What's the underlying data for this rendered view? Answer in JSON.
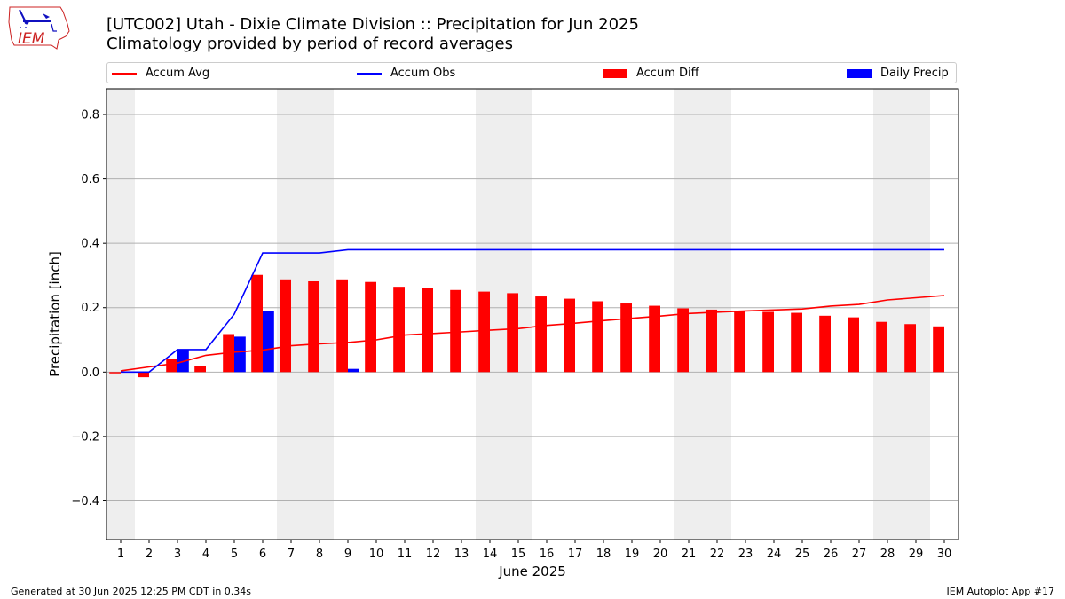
{
  "logo": {
    "text": "IEM"
  },
  "title": {
    "line1": "[UTC002] Utah - Dixie Climate Division :: Precipitation for Jun 2025",
    "line2": "Climatology provided by period of record averages"
  },
  "legend": {
    "accum_avg": "Accum Avg",
    "accum_obs": "Accum Obs",
    "accum_diff": "Accum Diff",
    "daily_precip": "Daily Precip"
  },
  "footer": {
    "left": "Generated at 30 Jun 2025 12:25 PM CDT in 0.34s",
    "right": "IEM Autoplot App #17"
  },
  "colors": {
    "avg": "#ff0000",
    "obs": "#0000ff",
    "diff": "#ff0000",
    "daily": "#0000ff",
    "weekend_shade": "#eeeeee",
    "grid": "#b0b0b0"
  },
  "chart_data": {
    "type": "bar",
    "xlabel": "June 2025",
    "ylabel": "Precipitation [inch]",
    "ylim": [
      -0.52,
      0.88
    ],
    "yticks": [
      -0.4,
      -0.2,
      0.0,
      0.2,
      0.4,
      0.6,
      0.8
    ],
    "ytick_labels": [
      "−0.4",
      "−0.2",
      "0.0",
      "0.2",
      "0.4",
      "0.6",
      "0.8"
    ],
    "xlim": [
      0.5,
      30.5
    ],
    "grid": "horizontal",
    "legend_position": "top",
    "x": [
      1,
      2,
      3,
      4,
      5,
      6,
      7,
      8,
      9,
      10,
      11,
      12,
      13,
      14,
      15,
      16,
      17,
      18,
      19,
      20,
      21,
      22,
      23,
      24,
      25,
      26,
      27,
      28,
      29,
      30
    ],
    "weekend_days": [
      1,
      7,
      8,
      14,
      15,
      21,
      22,
      28,
      29
    ],
    "series": [
      {
        "name": "Accum Avg",
        "kind": "line",
        "values": [
          0.004,
          0.016,
          0.028,
          0.052,
          0.062,
          0.068,
          0.082,
          0.088,
          0.092,
          0.1,
          0.115,
          0.12,
          0.125,
          0.13,
          0.135,
          0.145,
          0.152,
          0.16,
          0.167,
          0.174,
          0.182,
          0.186,
          0.19,
          0.193,
          0.196,
          0.205,
          0.21,
          0.224,
          0.231,
          0.238
        ]
      },
      {
        "name": "Accum Obs",
        "kind": "line",
        "values": [
          0.0,
          0.0,
          0.07,
          0.07,
          0.18,
          0.37,
          0.37,
          0.37,
          0.38,
          0.38,
          0.38,
          0.38,
          0.38,
          0.38,
          0.38,
          0.38,
          0.38,
          0.38,
          0.38,
          0.38,
          0.38,
          0.38,
          0.38,
          0.38,
          0.38,
          0.38,
          0.38,
          0.38,
          0.38,
          0.38
        ]
      },
      {
        "name": "Accum Diff",
        "kind": "bar",
        "values": [
          -0.004,
          -0.016,
          0.042,
          0.018,
          0.118,
          0.302,
          0.288,
          0.282,
          0.288,
          0.28,
          0.265,
          0.26,
          0.255,
          0.25,
          0.245,
          0.235,
          0.228,
          0.22,
          0.213,
          0.206,
          0.198,
          0.194,
          0.19,
          0.187,
          0.184,
          0.175,
          0.17,
          0.156,
          0.149,
          0.142
        ]
      },
      {
        "name": "Daily Precip",
        "kind": "bar",
        "values": [
          0.0,
          0.0,
          0.07,
          0.0,
          0.11,
          0.19,
          0.0,
          0.0,
          0.01,
          0.0,
          0.0,
          0.0,
          0.0,
          0.0,
          0.0,
          0.0,
          0.0,
          0.0,
          0.0,
          0.0,
          0.0,
          0.0,
          0.0,
          0.0,
          0.0,
          0.0,
          0.0,
          0.0,
          0.0,
          0.0
        ]
      }
    ]
  }
}
